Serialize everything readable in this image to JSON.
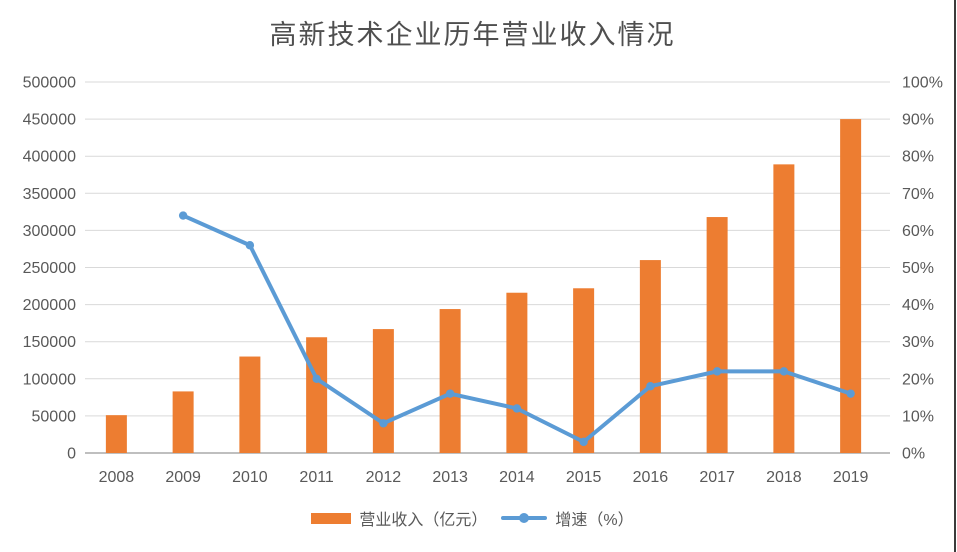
{
  "title": "高新技术企业历年营业收入情况",
  "colors": {
    "bar": "#ED7D31",
    "line": "#5B9BD5",
    "grid": "#D9D9D9",
    "axis": "#BFBFBF",
    "label": "#595959",
    "title": "#4F4F4F",
    "window_border": "#3B3B3B",
    "background": "#FFFFFF"
  },
  "chart_data": {
    "type": "combo",
    "title": "高新技术企业历年营业收入情况",
    "categories": [
      "2008",
      "2009",
      "2010",
      "2011",
      "2012",
      "2013",
      "2014",
      "2015",
      "2016",
      "2017",
      "2018",
      "2019"
    ],
    "series": [
      {
        "name": "营业收入（亿元）",
        "type": "bar",
        "axis": "left",
        "color": "#ED7D31",
        "values": [
          51000,
          83000,
          130000,
          156000,
          167000,
          194000,
          216000,
          222000,
          260000,
          318000,
          389000,
          450000
        ]
      },
      {
        "name": "增速（%）",
        "type": "line",
        "axis": "right",
        "color": "#5B9BD5",
        "values": [
          null,
          64,
          56,
          20,
          8,
          16,
          12,
          3,
          18,
          22,
          22,
          16
        ]
      }
    ],
    "left_axis": {
      "min": 0,
      "max": 500000,
      "step": 50000,
      "tick_labels": [
        "0",
        "50000",
        "100000",
        "150000",
        "200000",
        "250000",
        "300000",
        "350000",
        "400000",
        "450000",
        "500000"
      ]
    },
    "right_axis": {
      "min": 0,
      "max": 100,
      "step": 10,
      "tick_labels": [
        "0%",
        "10%",
        "20%",
        "30%",
        "40%",
        "50%",
        "60%",
        "70%",
        "80%",
        "90%",
        "100%"
      ]
    },
    "grid": true,
    "legend_position": "bottom",
    "legend": [
      "营业收入（亿元）",
      "增速（%）"
    ]
  }
}
